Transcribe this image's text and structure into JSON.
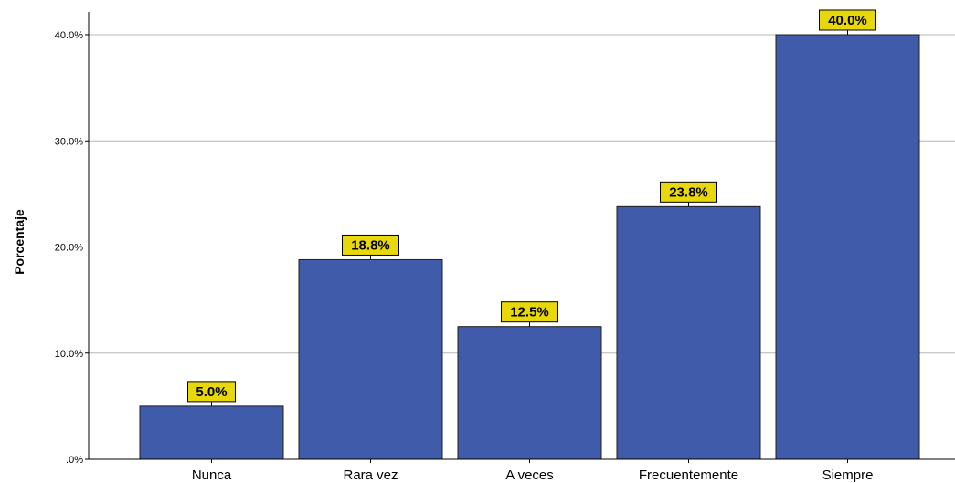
{
  "chart_data": {
    "type": "bar",
    "categories": [
      "Nunca",
      "Rara vez",
      "A veces",
      "Frecuentemente",
      "Siempre"
    ],
    "values": [
      5.0,
      18.8,
      12.5,
      23.8,
      40.0
    ],
    "data_labels": [
      "5.0%",
      "18.8%",
      "12.5%",
      "23.8%",
      "40.0%"
    ],
    "title": "",
    "xlabel": "",
    "ylabel": "Porcentaje",
    "ylim": [
      0,
      42
    ],
    "yticks": [
      0,
      10,
      20,
      30,
      40
    ],
    "ytick_labels": [
      ".0%",
      "10.0%",
      "20.0%",
      "30.0%",
      "40.0%"
    ],
    "grid": "horizontal",
    "colors": {
      "bar": "#3f5ba9",
      "bar_border": "#1f1f1f",
      "label_bg": "#e8d80a",
      "gridline": "#b5b5b5",
      "axis": "#000000"
    }
  }
}
